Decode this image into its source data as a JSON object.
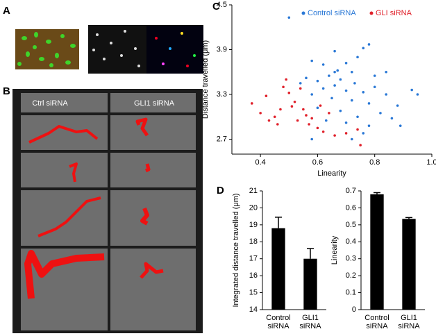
{
  "panel_labels": [
    "A",
    "B",
    "C",
    "D"
  ],
  "panel_b": {
    "columns": [
      "Ctrl siRNA",
      "GLI1 siRNA"
    ]
  },
  "chart_data": [
    {
      "type": "scatter",
      "xlabel": "Linearity",
      "ylabel": "Distance travelled (μm)",
      "xlim": [
        0.3,
        1.0
      ],
      "ylim": [
        2.5,
        4.5
      ],
      "xticks": [
        0.4,
        0.6,
        0.8,
        {
          "value": 1,
          "label": "1.0"
        }
      ],
      "yticks": [
        2.7,
        3.3,
        3.9,
        4.5
      ],
      "legend": "top-right",
      "series": [
        {
          "name": "Control siRNA",
          "color": "#2a78d6",
          "x": [
            0.5,
            0.78,
            0.66,
            0.76,
            0.58,
            0.62,
            0.7,
            0.74,
            0.67,
            0.72,
            0.64,
            0.56,
            0.6,
            0.68,
            0.73,
            0.66,
            0.8,
            0.62,
            0.7,
            0.76,
            0.58,
            0.84,
            0.93,
            0.95,
            0.65,
            0.72,
            0.78,
            0.88,
            0.6,
            0.68,
            0.82,
            0.74,
            0.86,
            0.63,
            0.7,
            0.78,
            0.89,
            0.76,
            0.72,
            0.58,
            0.66,
            0.54,
            0.8,
            0.84
          ],
          "values": [
            4.33,
            3.97,
            3.88,
            3.92,
            3.75,
            3.7,
            3.72,
            3.8,
            3.62,
            3.6,
            3.55,
            3.52,
            3.48,
            3.5,
            3.45,
            3.42,
            3.4,
            3.38,
            3.35,
            3.33,
            3.3,
            3.3,
            3.36,
            3.3,
            3.25,
            3.22,
            3.18,
            3.15,
            3.12,
            3.08,
            3.05,
            3.0,
            2.98,
            2.95,
            2.92,
            2.88,
            2.88,
            2.78,
            2.7,
            2.7,
            3.6,
            3.45,
            3.55,
            3.6
          ]
        },
        {
          "name": "GLI siRNA",
          "color": "#e0202a",
          "x": [
            0.37,
            0.4,
            0.43,
            0.46,
            0.42,
            0.48,
            0.5,
            0.52,
            0.49,
            0.55,
            0.56,
            0.58,
            0.57,
            0.6,
            0.54,
            0.62,
            0.64,
            0.66,
            0.47,
            0.53,
            0.61,
            0.74,
            0.75,
            0.7,
            0.45,
            0.51
          ],
          "values": [
            3.18,
            3.05,
            2.95,
            2.9,
            3.28,
            3.4,
            3.32,
            3.2,
            3.5,
            3.1,
            3.02,
            2.98,
            2.9,
            2.85,
            3.38,
            2.8,
            3.05,
            2.75,
            3.1,
            2.95,
            3.15,
            2.83,
            2.62,
            2.78,
            3.0,
            3.14
          ]
        }
      ]
    },
    {
      "type": "bar",
      "ylabel": "Integrated distance travelled (μm)",
      "categories": [
        "Control siRNA",
        "GLI1 siRNA"
      ],
      "values": [
        18.8,
        17.0
      ],
      "errors": [
        0.65,
        0.6
      ],
      "color": "#000000",
      "ylim": [
        14,
        21
      ],
      "yticks": [
        14,
        15,
        16,
        17,
        18,
        19,
        20,
        21
      ]
    },
    {
      "type": "bar",
      "ylabel": "Linearity",
      "categories": [
        "Control siRNA",
        "GLI1 siRNA"
      ],
      "values": [
        0.68,
        0.535
      ],
      "errors": [
        0.01,
        0.008
      ],
      "color": "#000000",
      "ylim": [
        0,
        0.7
      ],
      "yticks": [
        0,
        0.1,
        0.2,
        0.3,
        0.4,
        0.5,
        0.6,
        0.7
      ]
    }
  ]
}
